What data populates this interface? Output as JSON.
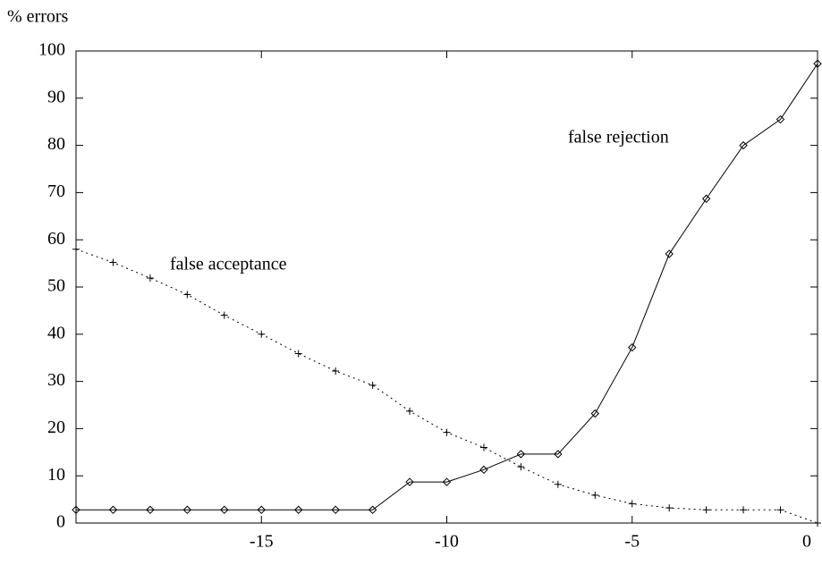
{
  "chart_data": {
    "type": "line",
    "y_label": "% errors",
    "x": [
      -20,
      -19,
      -18,
      -17,
      -16,
      -15,
      -14,
      -13,
      -12,
      -11,
      -10,
      -9,
      -8,
      -7,
      -6,
      -5,
      -4,
      -3,
      -2,
      -1,
      0
    ],
    "series": [
      {
        "name": "false rejection",
        "color": "#000000",
        "marker": "diamond",
        "dash": "solid",
        "values": [
          2.8,
          2.8,
          2.8,
          2.8,
          2.8,
          2.8,
          2.8,
          2.8,
          2.8,
          8.7,
          8.7,
          11.3,
          14.6,
          14.6,
          23.2,
          37.2,
          57,
          68.7,
          80,
          85.5,
          97.3
        ]
      },
      {
        "name": "false acceptance",
        "color": "#000000",
        "marker": "plus",
        "dash": "dotted",
        "values": [
          58,
          55.2,
          51.9,
          48.4,
          44,
          40,
          35.9,
          32.2,
          29.2,
          23.7,
          19.2,
          16,
          11.9,
          8.2,
          5.9,
          4.1,
          3.2,
          2.8,
          2.8,
          2.8,
          0
        ]
      }
    ],
    "xlim": [
      -20,
      0
    ],
    "xticks": [
      -15,
      -10,
      -5,
      0
    ],
    "ylim": [
      0,
      100
    ],
    "yticks": [
      0,
      10,
      20,
      30,
      40,
      50,
      60,
      70,
      80,
      90,
      100
    ],
    "grid": false
  }
}
